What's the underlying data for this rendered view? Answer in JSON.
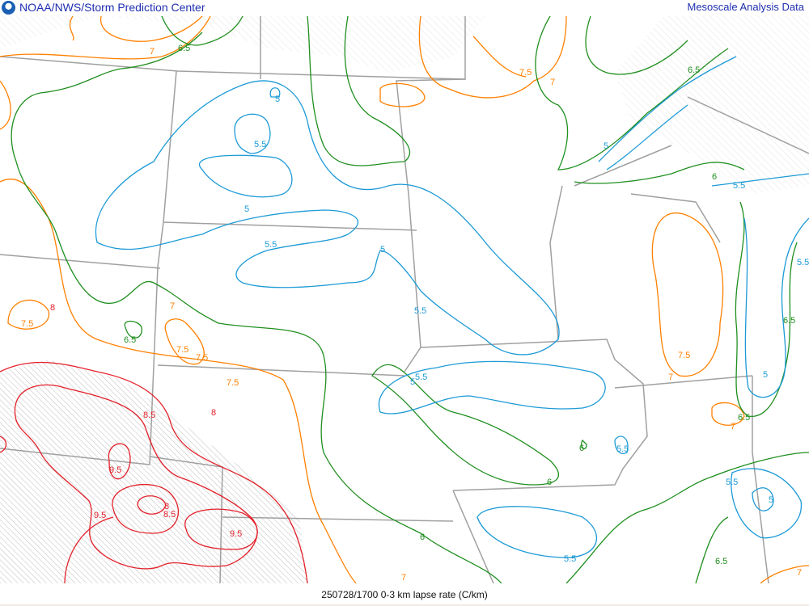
{
  "header": {
    "title_left": "NOAA/NWS/Storm Prediction Center",
    "title_right": "Mesoscale Analysis Data",
    "logo": "noaa-logo"
  },
  "footer": {
    "caption": "250728/1700 0-3 km lapse rate (C/km)"
  },
  "colors": {
    "c5": "#1c9ad6",
    "c6": "#1f8f1f",
    "c7": "#ff8000",
    "c8": "#e3202a",
    "border": "#a0a0a0",
    "hatch": "#c8c8c8"
  },
  "contour_levels": [
    "5",
    "5.5",
    "6",
    "6.5",
    "7",
    "7.5",
    "8",
    "8.5",
    "9.5"
  ],
  "labels": [
    "7",
    "6.5",
    "7.5",
    "7",
    "5",
    "5.5",
    "5",
    "5.5",
    "5",
    "5.5",
    "5",
    "5.5",
    "8",
    "7.5",
    "7",
    "6.5",
    "7.5",
    "7.5",
    "7.5",
    "8.5",
    "8",
    "9.5",
    "9.5",
    "8",
    "8.5",
    "9.5",
    "6",
    "6",
    "5.5",
    "6",
    "7",
    "5.5",
    "6.5",
    "5",
    "6",
    "5.5",
    "6.5",
    "7",
    "7.5",
    "5",
    "5.5",
    "5",
    "6.5",
    "7",
    "6.5",
    "5.5",
    "7"
  ]
}
